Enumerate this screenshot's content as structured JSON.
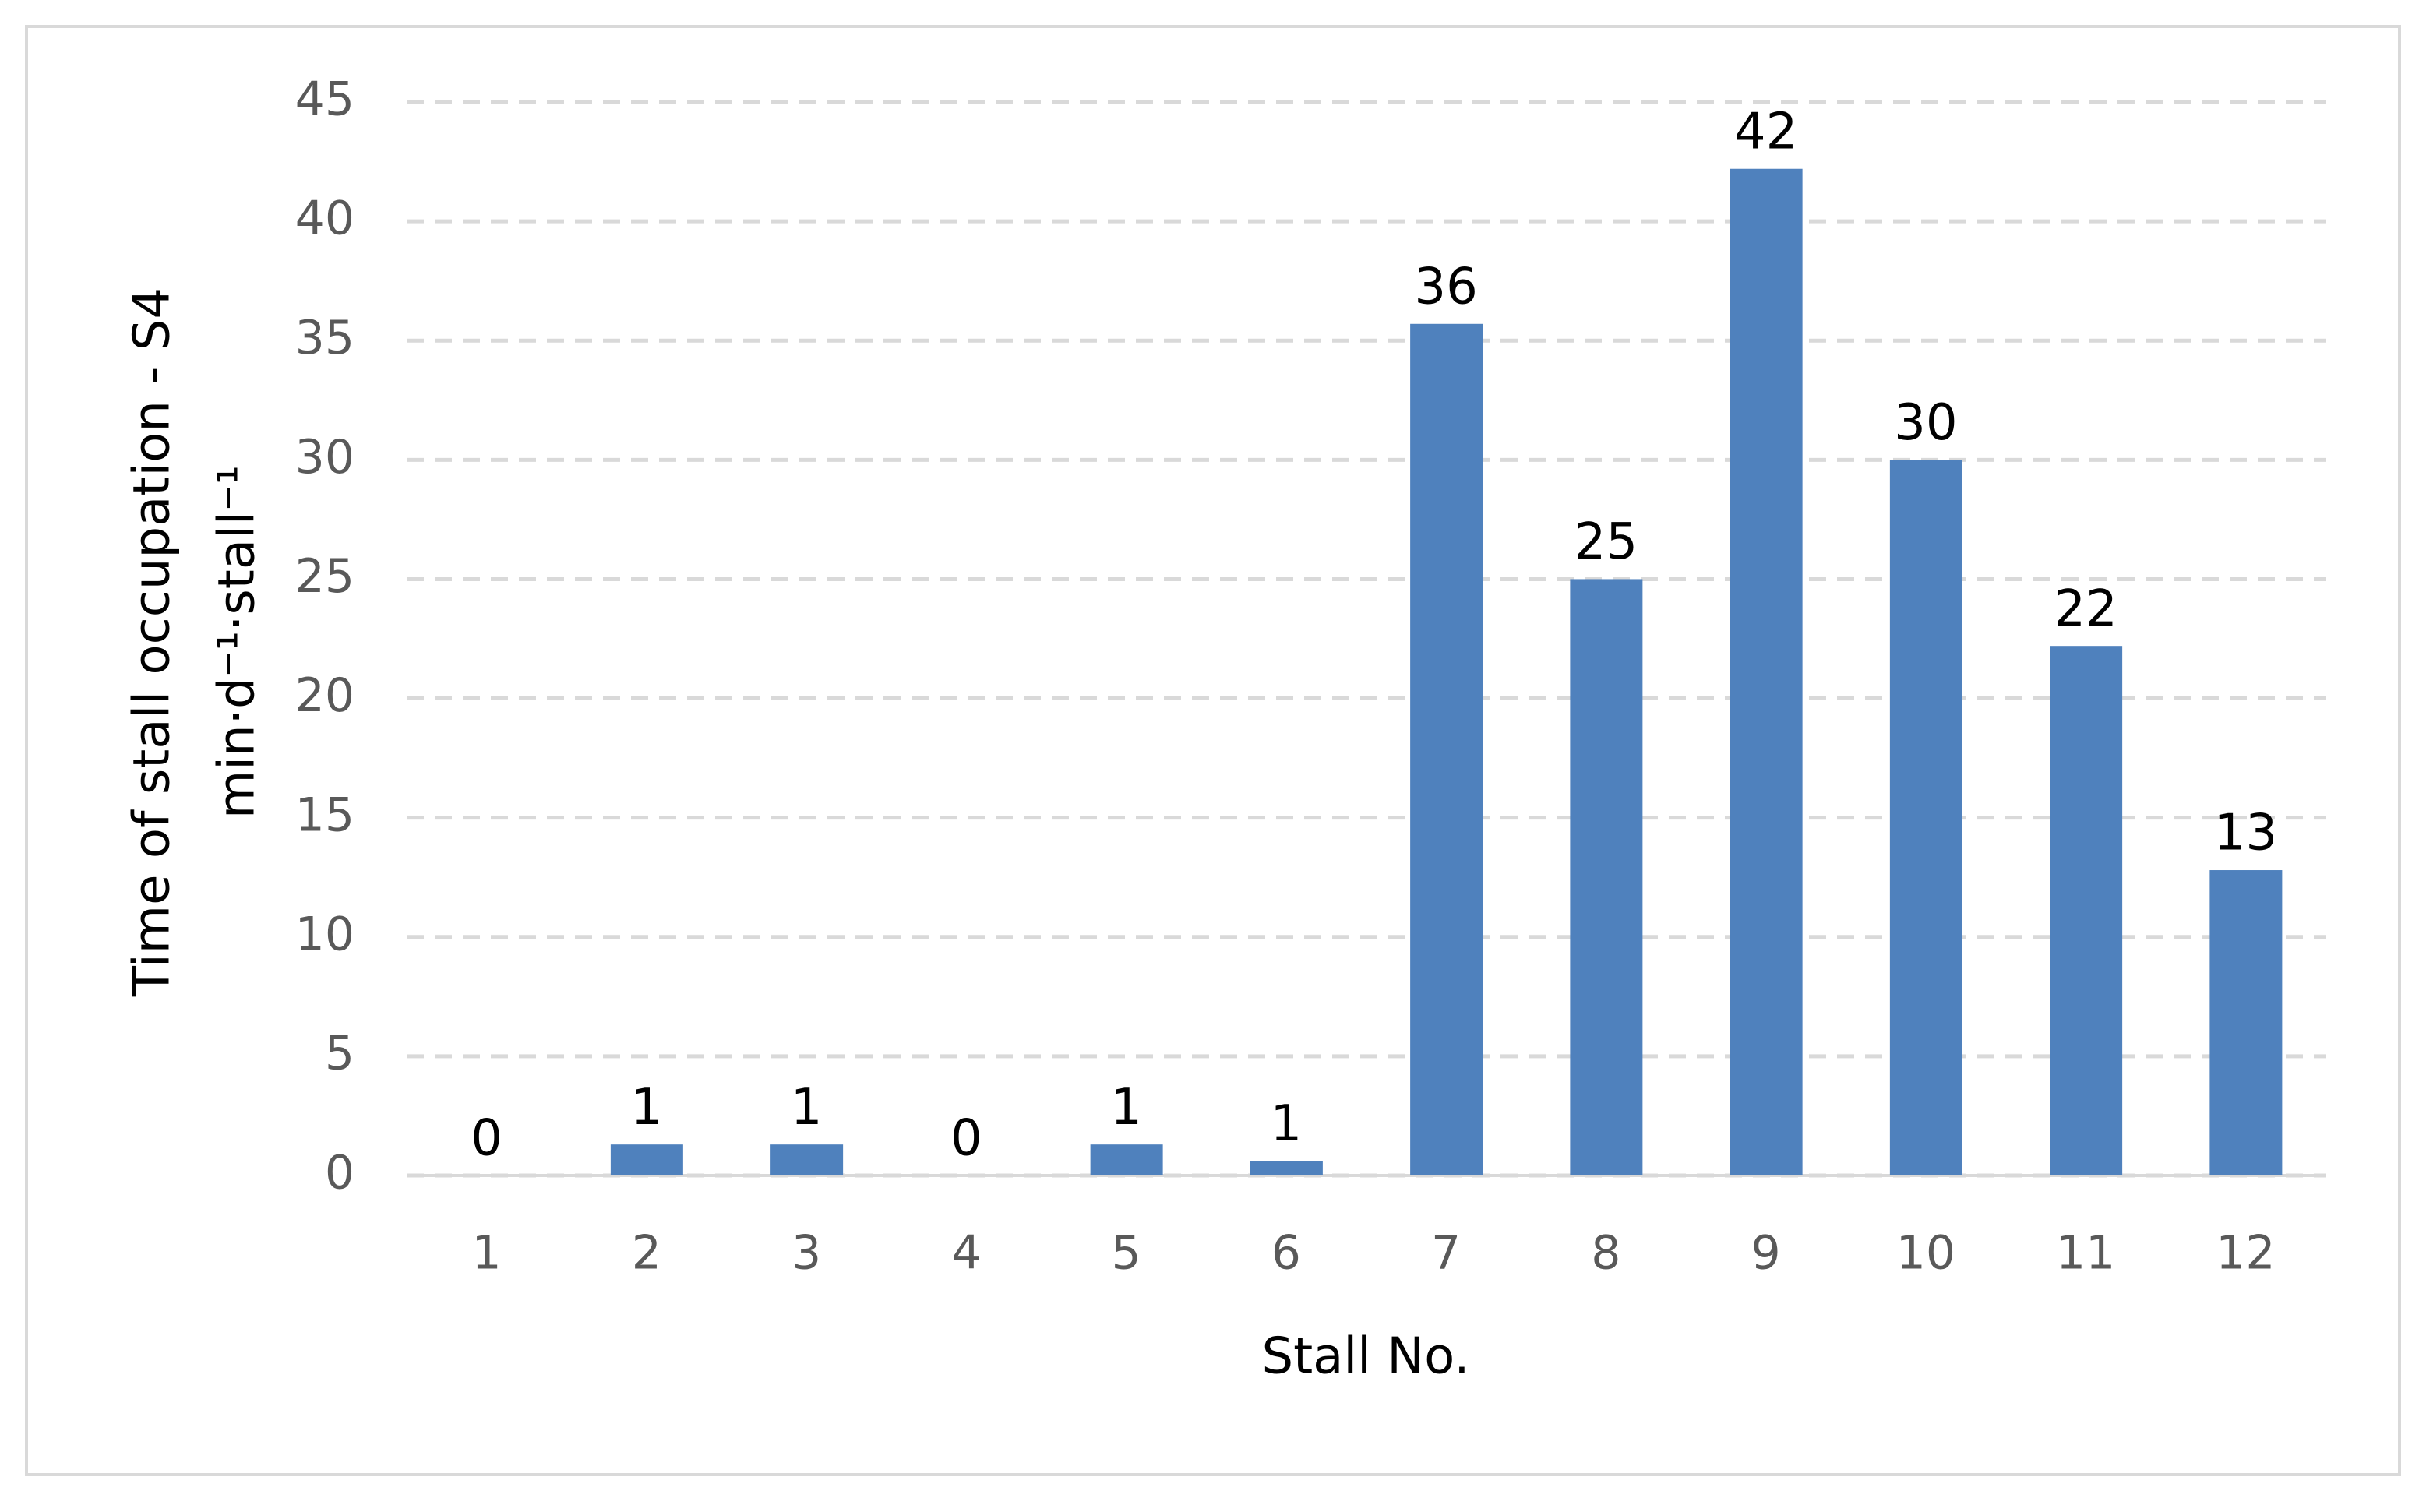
{
  "chart_data": {
    "type": "bar",
    "x_label": "Stall No.",
    "y_label": [
      "Time of stall occupation - S4",
      "min·d⁻¹·stall⁻¹"
    ],
    "categories": [
      "1",
      "2",
      "3",
      "4",
      "5",
      "6",
      "7",
      "8",
      "9",
      "10",
      "11",
      "12"
    ],
    "values": [
      0,
      1.3,
      1.3,
      0,
      1.3,
      0.6,
      35.7,
      25,
      42.2,
      30,
      22.2,
      12.8
    ],
    "value_labels": [
      "0",
      "1",
      "1",
      "0",
      "1",
      "1",
      "36",
      "25",
      "42",
      "30",
      "22",
      "13"
    ],
    "color": "#4f81bd",
    "ylim": [
      0,
      45
    ],
    "yticks": [
      0,
      5,
      10,
      15,
      20,
      25,
      30,
      35,
      40,
      45
    ],
    "grid": true
  }
}
